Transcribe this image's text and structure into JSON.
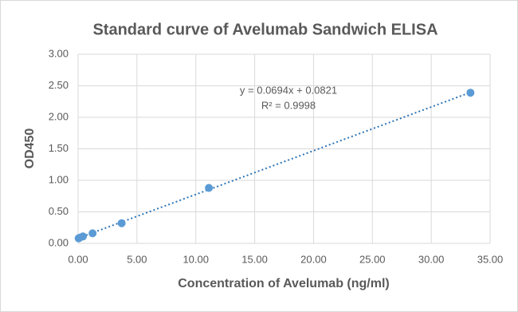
{
  "chart_data": {
    "type": "scatter",
    "title": "Standard curve of Avelumab Sandwich ELISA",
    "x_label": "Concentration of Avelumab (ng/ml)",
    "y_label": "OD450",
    "series": [
      {
        "name": "OD450",
        "color": "#5b9bd5",
        "x": [
          0.046,
          0.137,
          0.41,
          1.23,
          3.7,
          11.11,
          33.33
        ],
        "values": [
          0.08,
          0.09,
          0.11,
          0.16,
          0.32,
          0.88,
          2.39
        ]
      }
    ],
    "trendline": {
      "slope": 0.0694,
      "intercept": 0.0821,
      "color": "#2e75b6",
      "equation": "y = 0.0694x + 0.0821",
      "r_squared_label": "R² = 0.9998"
    },
    "xlim": [
      0,
      35
    ],
    "xticks": [
      {
        "value": 0,
        "label": "0.00"
      },
      {
        "value": 5,
        "label": "5.00"
      },
      {
        "value": 10,
        "label": "10.00"
      },
      {
        "value": 15,
        "label": "15.00"
      },
      {
        "value": 20,
        "label": "20.00"
      },
      {
        "value": 25,
        "label": "25.00"
      },
      {
        "value": 30,
        "label": "30.00"
      },
      {
        "value": 35,
        "label": "35.00"
      }
    ],
    "ylim": [
      0,
      3
    ],
    "yticks": [
      {
        "value": 0,
        "label": "0.00"
      },
      {
        "value": 0.5,
        "label": "0.50"
      },
      {
        "value": 1,
        "label": "1.00"
      },
      {
        "value": 1.5,
        "label": "1.50"
      },
      {
        "value": 2,
        "label": "2.00"
      },
      {
        "value": 2.5,
        "label": "2.50"
      },
      {
        "value": 3,
        "label": "3.00"
      }
    ],
    "grid": true
  }
}
